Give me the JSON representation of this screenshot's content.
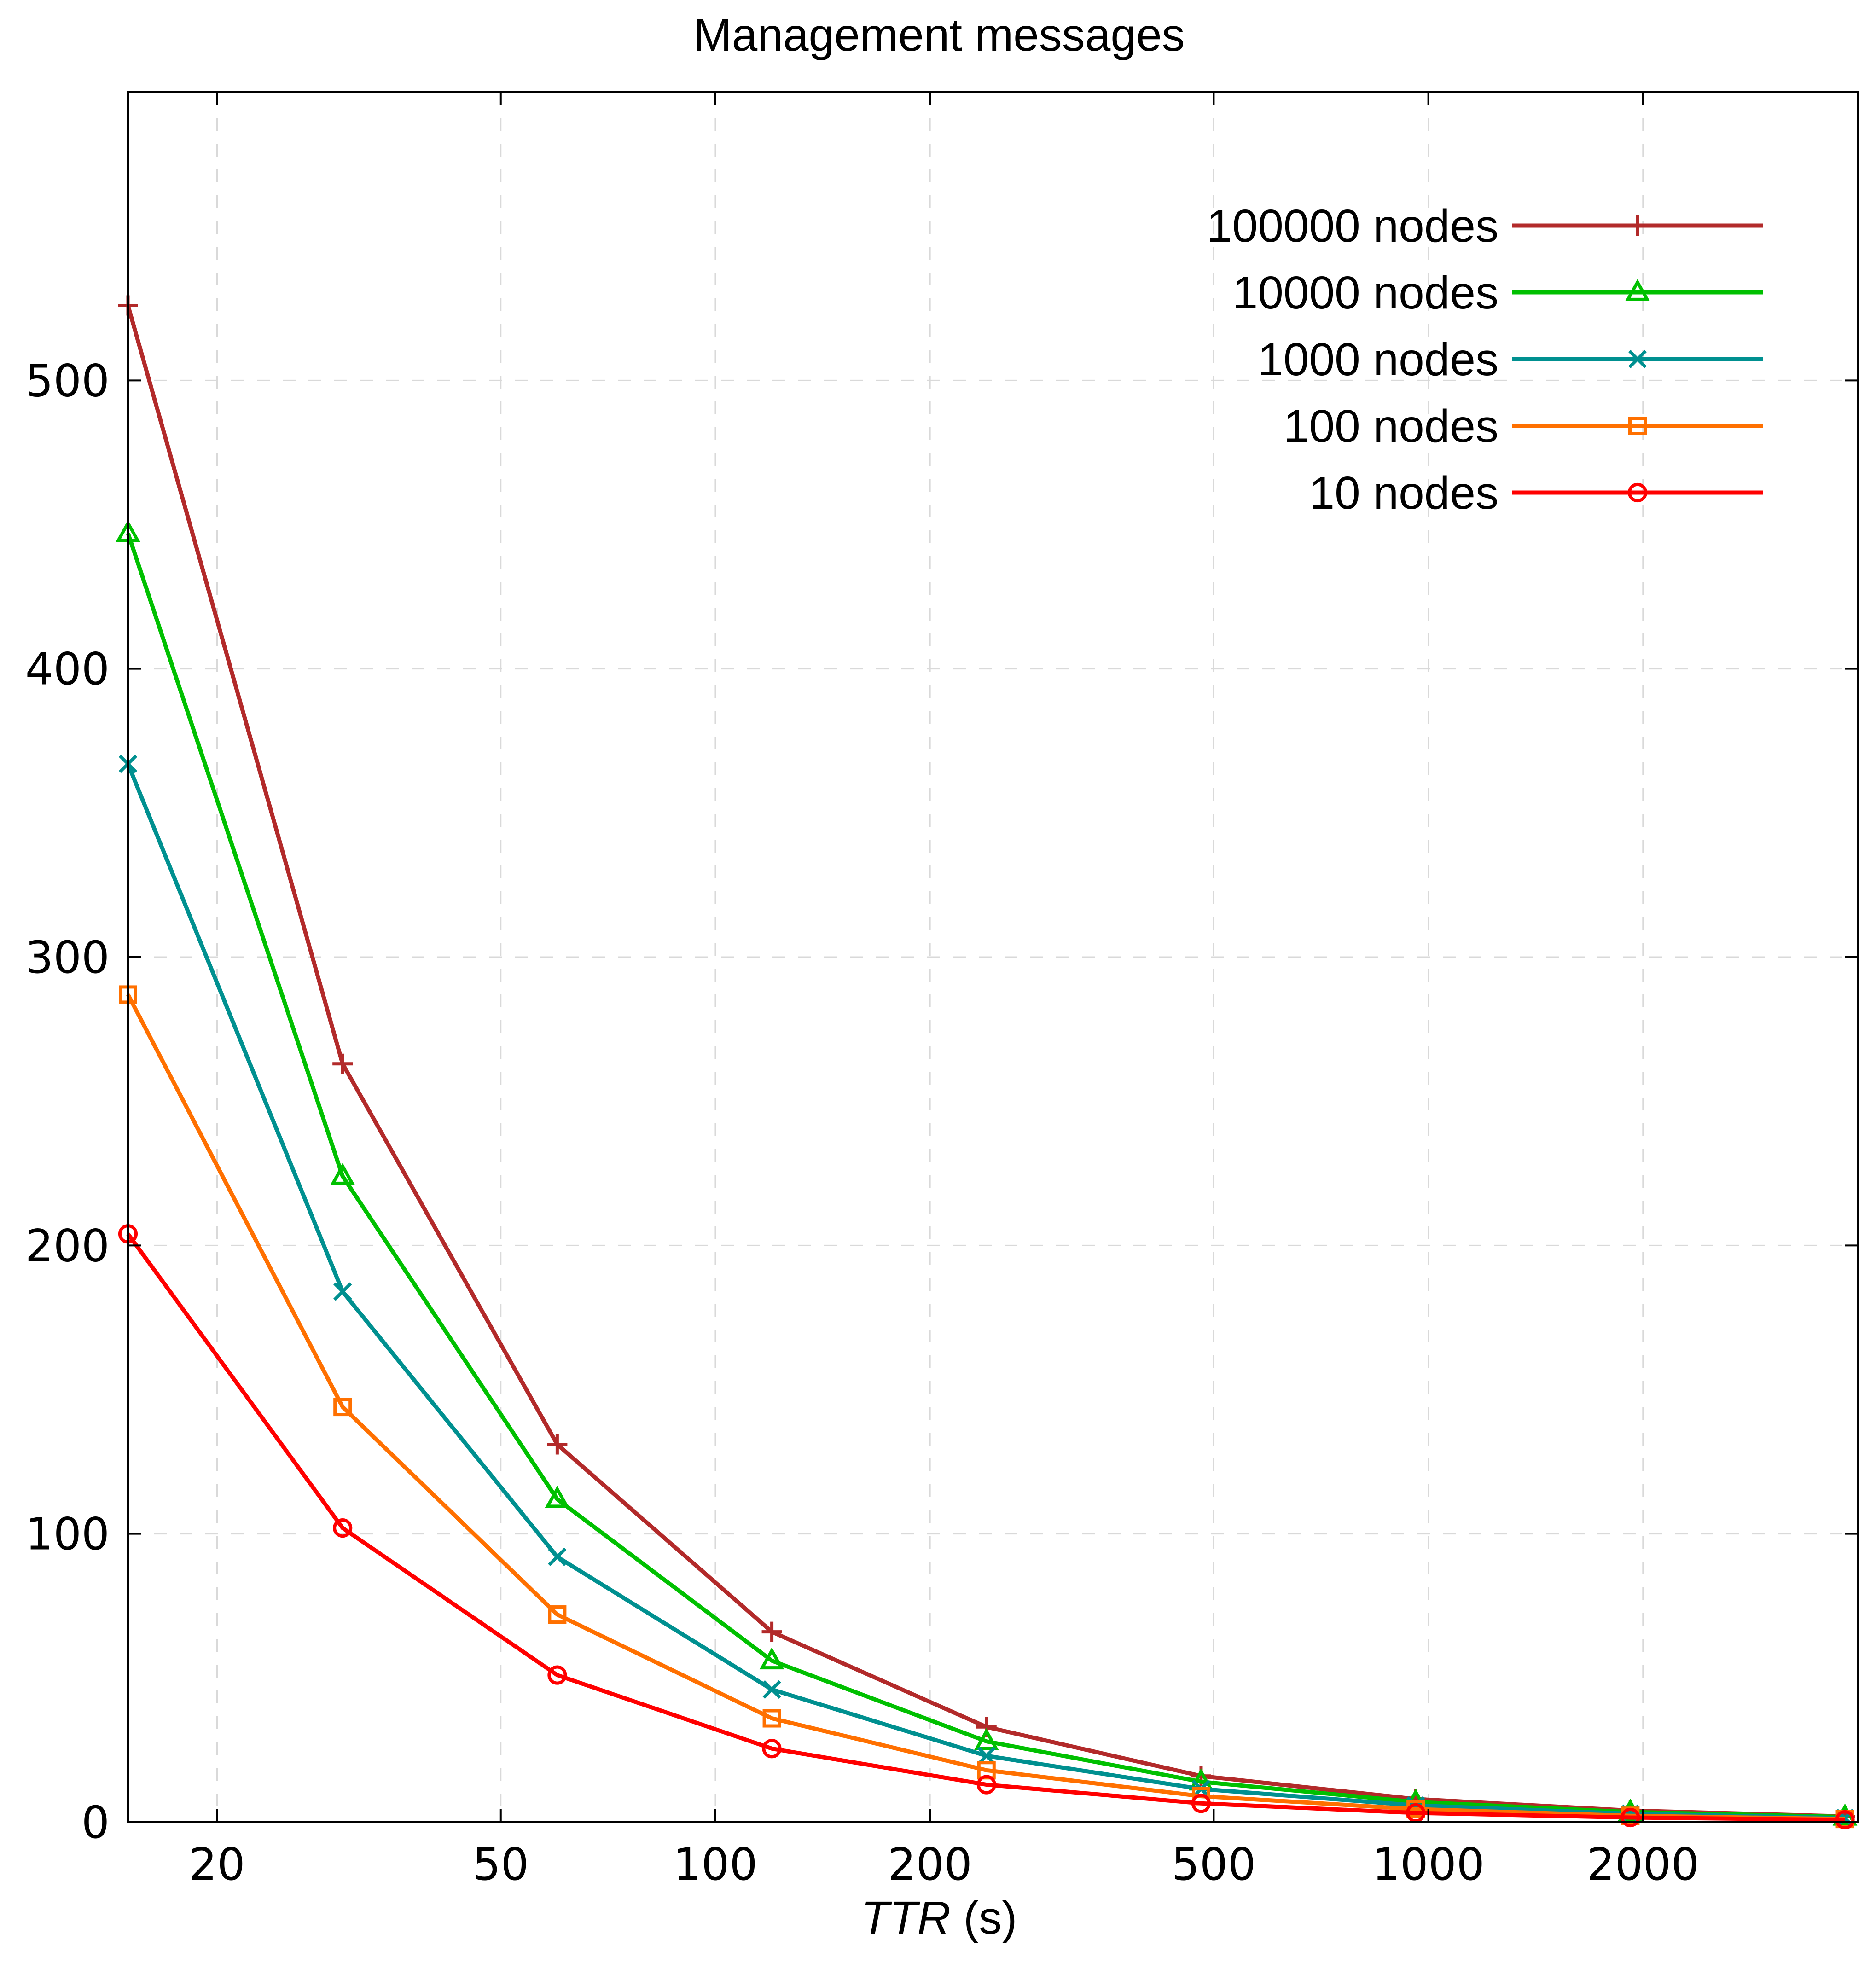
{
  "chart_data": {
    "type": "line",
    "title": "Management messages",
    "xlabel_italic": "TTR",
    "xlabel_rest": " (s)",
    "ylabel": "",
    "x_scale": "log",
    "xlim": [
      15,
      4000
    ],
    "ylim": [
      0,
      600
    ],
    "x": [
      15,
      30,
      60,
      120,
      240,
      480,
      960,
      1920,
      3840
    ],
    "x_ticks": [
      {
        "value": 20,
        "label": "20"
      },
      {
        "value": 50,
        "label": "50"
      },
      {
        "value": 100,
        "label": "100"
      },
      {
        "value": 200,
        "label": "200"
      },
      {
        "value": 500,
        "label": "500"
      },
      {
        "value": 1000,
        "label": "1000"
      },
      {
        "value": 2000,
        "label": "2000"
      }
    ],
    "y_ticks": [
      {
        "value": 0,
        "label": "0"
      },
      {
        "value": 100,
        "label": "100"
      },
      {
        "value": 200,
        "label": "200"
      },
      {
        "value": 300,
        "label": "300"
      },
      {
        "value": 400,
        "label": "400"
      },
      {
        "value": 500,
        "label": "500"
      }
    ],
    "grid": true,
    "legend_position": "top-right",
    "series": [
      {
        "name": "100000 nodes",
        "color": "#b22a2a",
        "marker": "plus",
        "values": [
          526,
          263,
          131,
          66,
          33,
          16,
          8,
          4,
          2
        ]
      },
      {
        "name": "10000 nodes",
        "color": "#00c000",
        "marker": "triangle",
        "values": [
          447,
          224,
          112,
          56,
          28,
          14,
          7,
          3.5,
          1.8
        ]
      },
      {
        "name": "1000 nodes",
        "color": "#009090",
        "marker": "cross",
        "values": [
          367,
          184,
          92,
          46,
          23,
          11.5,
          5.8,
          2.9,
          1.4
        ]
      },
      {
        "name": "100 nodes",
        "color": "#ff7000",
        "marker": "square",
        "values": [
          287,
          144,
          72,
          36,
          18,
          9,
          4.5,
          2.2,
          1.1
        ]
      },
      {
        "name": "10 nodes",
        "color": "#ff0000",
        "marker": "circle",
        "values": [
          204,
          102,
          51,
          25.5,
          13,
          6.5,
          3.2,
          1.6,
          0.8
        ]
      }
    ]
  }
}
